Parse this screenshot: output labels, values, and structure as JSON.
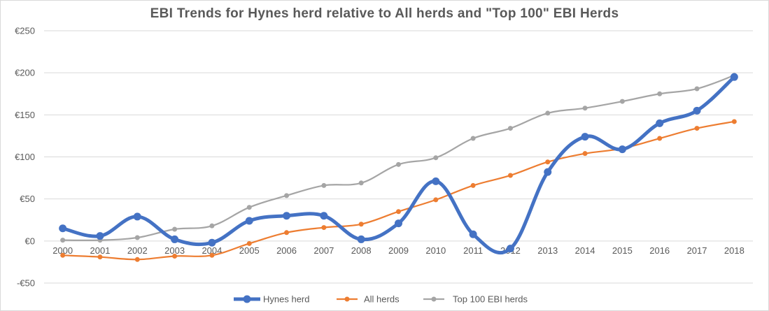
{
  "chart_data": {
    "type": "line",
    "title": "EBI Trends for Hynes herd relative to All herds and \"Top 100\" EBI Herds",
    "xlabel": "",
    "ylabel": "",
    "categories": [
      "2000",
      "2001",
      "2002",
      "2003",
      "2004",
      "2005",
      "2006",
      "2007",
      "2008",
      "2009",
      "2010",
      "2011",
      "2012",
      "2013",
      "2014",
      "2015",
      "2016",
      "2017",
      "2018"
    ],
    "ylim": [
      -50,
      250
    ],
    "yticks": [
      -50,
      0,
      50,
      100,
      150,
      200,
      250
    ],
    "ytick_labels": [
      "-€50",
      "€0",
      "€50",
      "€100",
      "€150",
      "€200",
      "€250"
    ],
    "grid": true,
    "legend": "bottom",
    "series": [
      {
        "name": "Hynes herd",
        "color": "#4472c4",
        "values": [
          15,
          6,
          29,
          2,
          -2,
          24,
          30,
          30,
          2,
          21,
          71,
          8,
          -9,
          82,
          124,
          109,
          140,
          155,
          195
        ]
      },
      {
        "name": "All herds",
        "color": "#ed7d31",
        "values": [
          -17,
          -19,
          -22,
          -18,
          -17,
          -3,
          10,
          16,
          20,
          35,
          49,
          66,
          78,
          94,
          104,
          110,
          122,
          134,
          142
        ]
      },
      {
        "name": "Top 100 EBI herds",
        "color": "#a5a5a5",
        "values": [
          1,
          1,
          4,
          14,
          18,
          40,
          54,
          66,
          69,
          91,
          99,
          122,
          134,
          152,
          158,
          166,
          175,
          181,
          197
        ]
      }
    ]
  }
}
